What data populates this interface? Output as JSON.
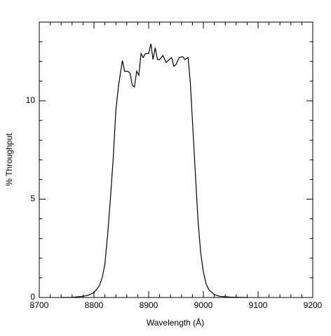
{
  "chart_data": {
    "type": "line",
    "xlabel": "Wavelength (Å)",
    "ylabel": "% Throughput",
    "x": [
      8740,
      8760,
      8780,
      8790,
      8800,
      8810,
      8815,
      8820,
      8825,
      8830,
      8835,
      8840,
      8845,
      8852,
      8856,
      8862,
      8866,
      8870,
      8874,
      8878,
      8882,
      8886,
      8890,
      8894,
      8900,
      8904,
      8908,
      8912,
      8916,
      8920,
      8926,
      8932,
      8938,
      8942,
      8946,
      8950,
      8956,
      8962,
      8966,
      8972,
      8976,
      8980,
      8985,
      8990,
      8995,
      9000,
      9005,
      9010,
      9020,
      9030,
      9050,
      9080
    ],
    "series": [
      {
        "color": "#000000",
        "values": [
          0,
          0.01,
          0.06,
          0.12,
          0.25,
          0.6,
          1.0,
          1.7,
          3.2,
          5.0,
          7.0,
          9.5,
          10.8,
          12.05,
          11.5,
          11.5,
          11.4,
          10.8,
          10.7,
          11.5,
          11.3,
          12.4,
          12.2,
          12.4,
          12.4,
          12.9,
          12.1,
          12.7,
          12.1,
          12.1,
          12.3,
          11.95,
          12.1,
          12.2,
          11.75,
          11.85,
          12.2,
          12.25,
          12.1,
          12.2,
          11.0,
          9.0,
          6.5,
          4.0,
          2.3,
          1.3,
          0.7,
          0.4,
          0.15,
          0.06,
          0.02,
          0
        ]
      }
    ],
    "xlim": [
      8700,
      9200
    ],
    "ylim": [
      0,
      14
    ],
    "xticks": [
      8700,
      8800,
      8900,
      9000,
      9100,
      9200
    ],
    "yticks": [
      0,
      5,
      10
    ],
    "xminorticks": [
      8720,
      8740,
      8760,
      8780,
      8820,
      8840,
      8860,
      8880,
      8920,
      8940,
      8960,
      8980,
      9020,
      9040,
      9060,
      9080,
      9120,
      9140,
      9160,
      9180
    ],
    "yminorticks": [
      1,
      2,
      3,
      4,
      6,
      7,
      8,
      9,
      11,
      12,
      13
    ]
  }
}
